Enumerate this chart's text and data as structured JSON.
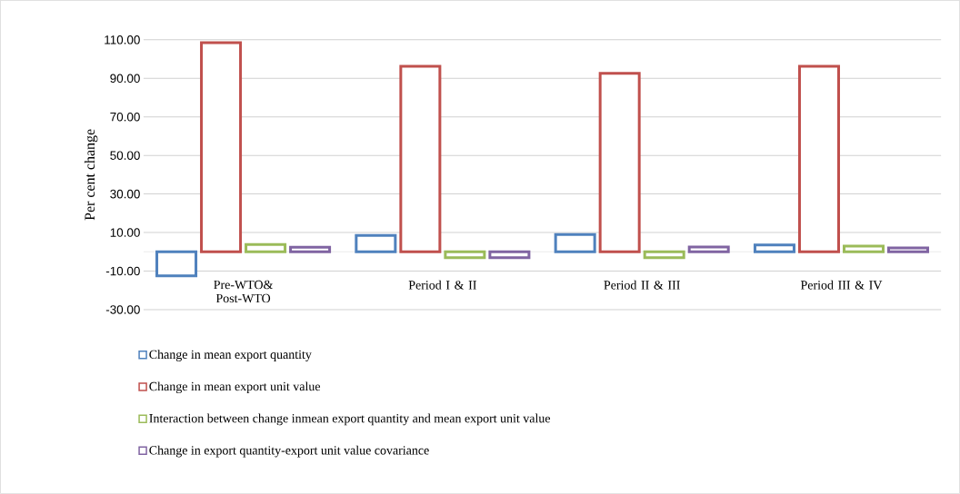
{
  "chart_data": {
    "type": "bar",
    "ylabel": "Per cent change",
    "categories": [
      "Pre-WTO& Post-WTO",
      "Period I & II",
      "Period II & III",
      "Period III & IV"
    ],
    "series": [
      {
        "name": "Change in mean export quantity",
        "color": "#4f81bd",
        "values": [
          -12.5,
          8.5,
          9,
          3.5
        ]
      },
      {
        "name": "Change in mean export unit value",
        "color": "#c0504d",
        "values": [
          108.5,
          96.3,
          92.6,
          96.3
        ]
      },
      {
        "name": "Interaction between change inmean export quantity and mean export unit value",
        "color": "#9bbb59",
        "values": [
          3.8,
          -3,
          -3,
          3
        ]
      },
      {
        "name": "Change in export quantity-export unit value covariance",
        "color": "#8064a2",
        "values": [
          2.4,
          -3,
          2.5,
          2
        ]
      }
    ],
    "ylim": [
      -30,
      110
    ],
    "yticks": [
      {
        "value": -30,
        "label": "-30.00"
      },
      {
        "value": -10,
        "label": "-10.00"
      },
      {
        "value": 10,
        "label": "10.00"
      },
      {
        "value": 30,
        "label": "30.00"
      },
      {
        "value": 50,
        "label": "50.00"
      },
      {
        "value": 70,
        "label": "70.00"
      },
      {
        "value": 90,
        "label": "90.00"
      },
      {
        "value": 110,
        "label": "110.00"
      }
    ],
    "grid": "y",
    "legend": "bottom"
  }
}
